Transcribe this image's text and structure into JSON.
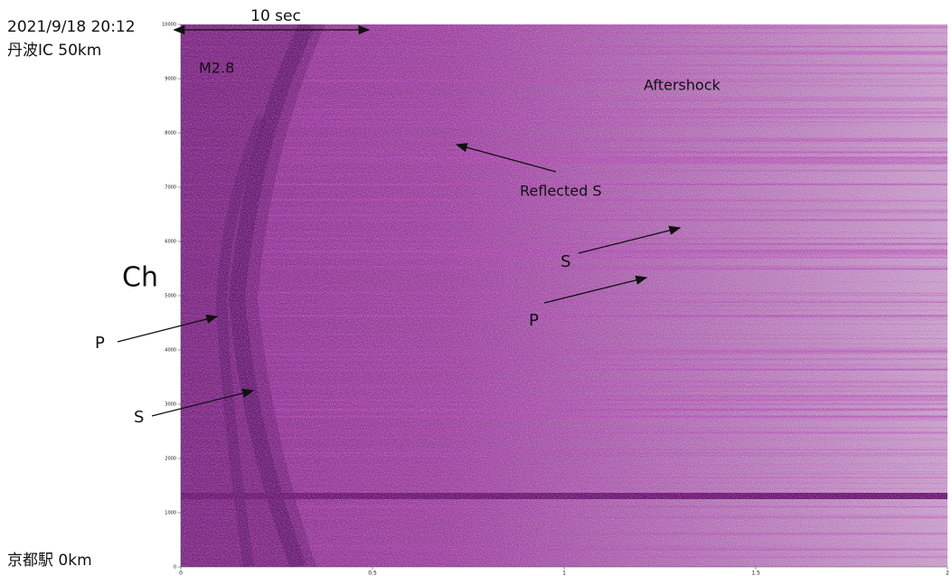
{
  "chart_data": {
    "type": "waterfall",
    "annotations": [
      "2021/9/18 20:12",
      "丹波IC 50km",
      "10 sec",
      "M2.8",
      "Aftershock",
      "Reflected S",
      "Ch",
      "P",
      "S",
      "S",
      "P",
      "京都駅 0km"
    ],
    "xlim": [
      0,
      2
    ],
    "xticks": [
      0,
      0.5,
      1,
      1.5,
      2
    ],
    "ylim": [
      0,
      10000
    ],
    "yticks": [
      0,
      1000,
      2000,
      3000,
      4000,
      5000,
      6000,
      7000,
      8000,
      9000,
      10000
    ]
  }
}
